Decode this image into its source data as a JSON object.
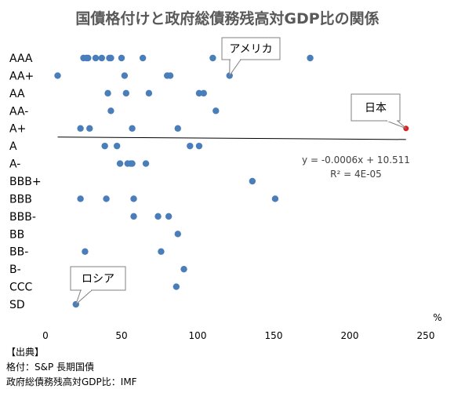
{
  "chart_data": {
    "type": "scatter",
    "title": "国債格付けと政府総債務残高対GDP比の関係",
    "x_unit": "%",
    "xlim": [
      0,
      250
    ],
    "x_ticks": [
      0,
      50,
      100,
      150,
      200,
      250
    ],
    "categories": [
      "AAA",
      "AA+",
      "AA",
      "AA-",
      "A+",
      "A",
      "A-",
      "BBB+",
      "BBB",
      "BBB-",
      "BB",
      "BB-",
      "B-",
      "CCC",
      "SD"
    ],
    "y_axis": "categories top-to-bottom",
    "points": [
      {
        "x": 25,
        "y": "AAA"
      },
      {
        "x": 27,
        "y": "AAA"
      },
      {
        "x": 28,
        "y": "AAA"
      },
      {
        "x": 33,
        "y": "AAA"
      },
      {
        "x": 37,
        "y": "AAA"
      },
      {
        "x": 42,
        "y": "AAA"
      },
      {
        "x": 43,
        "y": "AAA"
      },
      {
        "x": 50,
        "y": "AAA"
      },
      {
        "x": 64,
        "y": "AAA"
      },
      {
        "x": 110,
        "y": "AAA"
      },
      {
        "x": 174,
        "y": "AAA"
      },
      {
        "x": 8,
        "y": "AA+"
      },
      {
        "x": 52,
        "y": "AA+"
      },
      {
        "x": 80,
        "y": "AA+"
      },
      {
        "x": 82,
        "y": "AA+"
      },
      {
        "x": 121,
        "y": "AA+"
      },
      {
        "x": 41,
        "y": "AA"
      },
      {
        "x": 53,
        "y": "AA"
      },
      {
        "x": 68,
        "y": "AA"
      },
      {
        "x": 101,
        "y": "AA"
      },
      {
        "x": 104,
        "y": "AA"
      },
      {
        "x": 43,
        "y": "AA-"
      },
      {
        "x": 112,
        "y": "AA-"
      },
      {
        "x": 23,
        "y": "A+"
      },
      {
        "x": 29,
        "y": "A+"
      },
      {
        "x": 57,
        "y": "A+"
      },
      {
        "x": 87,
        "y": "A+"
      },
      {
        "x": 237,
        "y": "A+",
        "highlight": true
      },
      {
        "x": 39,
        "y": "A"
      },
      {
        "x": 47,
        "y": "A"
      },
      {
        "x": 95,
        "y": "A"
      },
      {
        "x": 101,
        "y": "A"
      },
      {
        "x": 49,
        "y": "A-"
      },
      {
        "x": 54,
        "y": "A-"
      },
      {
        "x": 56,
        "y": "A-"
      },
      {
        "x": 57,
        "y": "A-"
      },
      {
        "x": 66,
        "y": "A-"
      },
      {
        "x": 136,
        "y": "BBB+"
      },
      {
        "x": 23,
        "y": "BBB"
      },
      {
        "x": 40,
        "y": "BBB"
      },
      {
        "x": 58,
        "y": "BBB"
      },
      {
        "x": 151,
        "y": "BBB"
      },
      {
        "x": 58,
        "y": "BBB-"
      },
      {
        "x": 74,
        "y": "BBB-"
      },
      {
        "x": 81,
        "y": "BBB-"
      },
      {
        "x": 87,
        "y": "BB"
      },
      {
        "x": 26,
        "y": "BB-"
      },
      {
        "x": 76,
        "y": "BB-"
      },
      {
        "x": 91,
        "y": "B-"
      },
      {
        "x": 86,
        "y": "CCC"
      },
      {
        "x": 20,
        "y": "SD"
      }
    ],
    "trendline": {
      "slope": -0.0006,
      "intercept": 10.511,
      "x_from": 8,
      "x_to": 237
    },
    "trendline_equation": "y = -0.0006x + 10.511",
    "r_squared": "R² = 4E-05",
    "callouts": [
      {
        "label": "アメリカ",
        "target": {
          "x": 121,
          "y": "AA+"
        }
      },
      {
        "label": "日本",
        "target": {
          "x": 237,
          "y": "A+"
        }
      },
      {
        "label": "ロシア",
        "target": {
          "x": 20,
          "y": "SD"
        }
      }
    ],
    "colors": {
      "point": "#4a7ebb",
      "highlight": "#e02020",
      "title": "#595959",
      "axis_text": "#000000",
      "trend": "#000000"
    }
  },
  "source": {
    "header": "【出典】",
    "line1": "格付：S&P 長期国債",
    "line2": "政府総債務残高対GDP比：IMF"
  }
}
